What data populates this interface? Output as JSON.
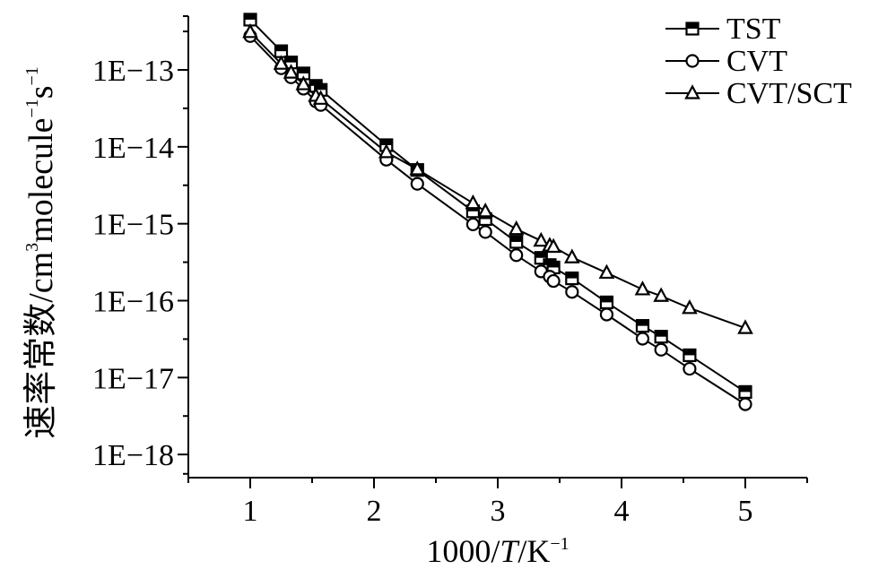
{
  "chart_data": {
    "type": "line",
    "xlabel": {
      "prefix": "1000/",
      "var": "T",
      "unit": "/K",
      "exp": "−1"
    },
    "ylabel": {
      "main": "速率常数/cm",
      "exp1": "3",
      "mid": "molecule",
      "exp2": "−1",
      "tail": "s",
      "exp3": "−1"
    },
    "xlim": [
      0.5,
      5.5
    ],
    "ylim": [
      5e-19,
      5e-13
    ],
    "yscale": "log",
    "x_ticks": [
      1,
      2,
      3,
      4,
      5
    ],
    "x_tick_labels": [
      "1",
      "2",
      "3",
      "4",
      "5"
    ],
    "y_ticks": [
      1e-13,
      1e-14,
      1e-15,
      1e-16,
      1e-17,
      1e-18
    ],
    "y_tick_labels": [
      "1E−13",
      "1E−14",
      "1E−15",
      "1E−16",
      "1E−17",
      "1E−18"
    ],
    "legend_position": "top-right",
    "series": [
      {
        "name": "TST",
        "marker": "square",
        "x": [
          1.0,
          1.25,
          1.33,
          1.43,
          1.53,
          1.57,
          2.1,
          2.35,
          2.8,
          2.9,
          3.15,
          3.35,
          3.42,
          3.45,
          3.6,
          3.88,
          4.17,
          4.32,
          4.55,
          5.0
        ],
        "y": [
          4.5e-13,
          1.75e-13,
          1.25e-13,
          9e-14,
          6.2e-14,
          5.5e-14,
          1.05e-14,
          5e-15,
          1.45e-15,
          1.15e-15,
          5.8e-16,
          3.6e-16,
          2.9e-16,
          2.7e-16,
          1.95e-16,
          9.5e-17,
          4.7e-17,
          3.4e-17,
          1.95e-17,
          6.5e-18
        ]
      },
      {
        "name": "CVT",
        "marker": "circle",
        "x": [
          1.0,
          1.25,
          1.33,
          1.43,
          1.53,
          1.57,
          2.1,
          2.35,
          2.8,
          2.9,
          3.15,
          3.35,
          3.42,
          3.45,
          3.6,
          3.88,
          4.17,
          4.32,
          4.55,
          5.0
        ],
        "y": [
          2.75e-13,
          1.05e-13,
          8e-14,
          5.7e-14,
          3.9e-14,
          3.5e-14,
          6.8e-15,
          3.3e-15,
          9.8e-16,
          7.8e-16,
          3.9e-16,
          2.4e-16,
          2.05e-16,
          1.8e-16,
          1.3e-16,
          6.6e-17,
          3.2e-17,
          2.3e-17,
          1.3e-17,
          4.5e-18
        ]
      },
      {
        "name": "CVT/SCT",
        "marker": "triangle",
        "x": [
          1.0,
          1.25,
          1.33,
          1.43,
          1.53,
          1.57,
          2.1,
          2.35,
          2.8,
          2.9,
          3.15,
          3.35,
          3.42,
          3.45,
          3.6,
          3.88,
          4.17,
          4.32,
          4.55,
          5.0
        ],
        "y": [
          3.1e-13,
          1.2e-13,
          9.2e-14,
          6.5e-14,
          4.6e-14,
          4.2e-14,
          8.5e-15,
          5.1e-15,
          1.85e-15,
          1.45e-15,
          8.5e-16,
          6e-16,
          5.2e-16,
          5e-16,
          3.65e-16,
          2.3e-16,
          1.4e-16,
          1.15e-16,
          8e-17,
          4.4e-17
        ]
      }
    ]
  }
}
